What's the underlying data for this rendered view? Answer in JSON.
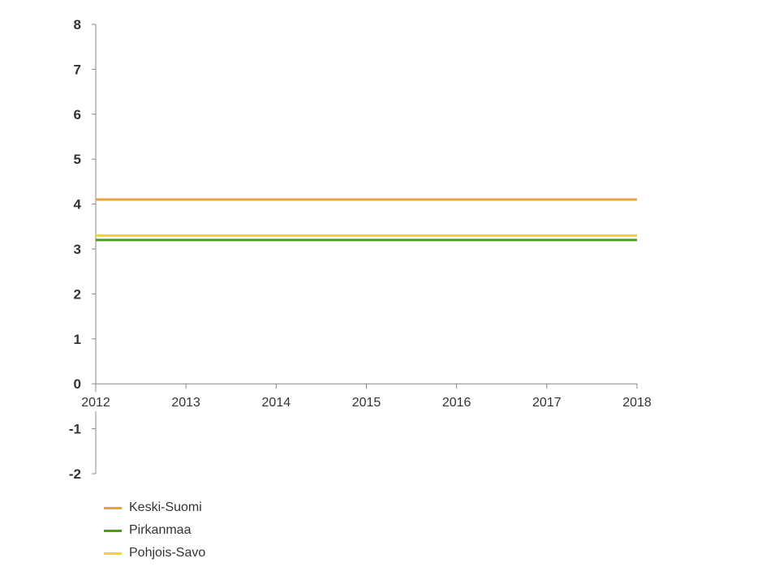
{
  "chart_data": {
    "type": "line",
    "title": "",
    "xlabel": "",
    "ylabel": "",
    "x": [
      2012,
      2013,
      2014,
      2015,
      2016,
      2017,
      2018
    ],
    "xlim": [
      2012,
      2018
    ],
    "ylim": [
      -2,
      8
    ],
    "yticks": [
      -2,
      -1,
      0,
      1,
      2,
      3,
      4,
      5,
      6,
      7,
      8
    ],
    "grid": false,
    "legend_position": "bottom-left",
    "series": [
      {
        "name": "Keski-Suomi",
        "color": "#e8a33a",
        "values": [
          4.1,
          4.1,
          4.1,
          4.1,
          4.1,
          4.1,
          4.1
        ]
      },
      {
        "name": "Pirkanmaa",
        "color": "#4e9a1e",
        "values": [
          3.2,
          3.2,
          3.2,
          3.2,
          3.2,
          3.2,
          3.2
        ]
      },
      {
        "name": "Pohjois-Savo",
        "color": "#f2d625",
        "values": [
          3.3,
          3.3,
          3.3,
          3.3,
          3.3,
          3.3,
          3.3
        ]
      }
    ]
  }
}
